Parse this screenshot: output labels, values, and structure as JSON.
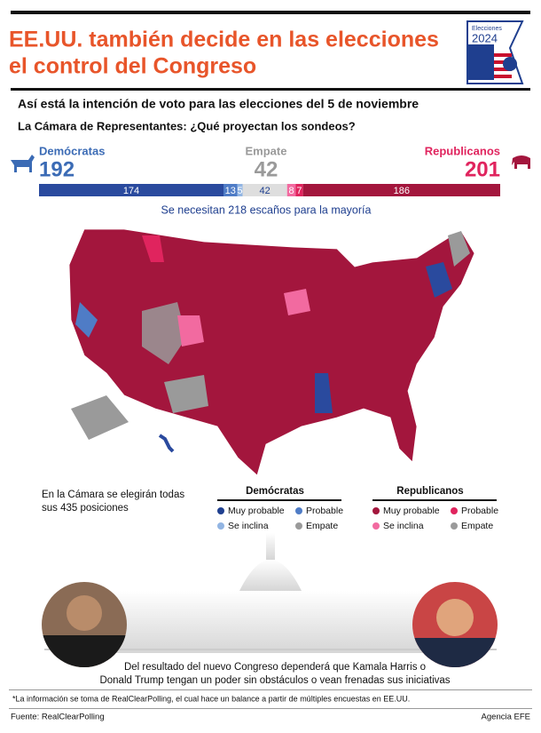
{
  "header": {
    "title_lines": [
      "EE.UU. también decide en las elecciones",
      "el control del Congreso"
    ],
    "badge": {
      "label": "Elecciones",
      "year": "2024"
    }
  },
  "subtitle": "Así está la intención de voto para las elecciones del 5 de noviembre",
  "question": "La Cámara de Representantes: ¿Qué proyectan los sondeos?",
  "parties": [
    {
      "name": "Demócratas",
      "seats": "192",
      "color": "#3b6bb5"
    },
    {
      "name": "Empate",
      "seats": "42",
      "color": "#9a9a9a"
    },
    {
      "name": "Republicanos",
      "seats": "201",
      "color": "#e0245e"
    }
  ],
  "seat_bar": {
    "segments": [
      {
        "value": 174,
        "color": "#2a4a9e"
      },
      {
        "value": 13,
        "color": "#4f7cc6"
      },
      {
        "value": 5,
        "color": "#92b5e3"
      },
      {
        "value": 42,
        "color": "#dedede"
      },
      {
        "value": 8,
        "color": "#f26aa0"
      },
      {
        "value": 7,
        "color": "#e0245e"
      },
      {
        "value": 186,
        "color": "#a3163d"
      }
    ],
    "majority_note": "Se necesitan 218 escaños para la mayoría"
  },
  "note_lines": [
    "En la Cámara se elegirán todas",
    "sus 435 posiciones"
  ],
  "legend": [
    {
      "title": "Demócratas",
      "items": [
        {
          "label": "Muy probable",
          "color": "#1f3f8f"
        },
        {
          "label": "Probable",
          "color": "#4f7cc6"
        },
        {
          "label": "Se inclina",
          "color": "#92b5e3"
        },
        {
          "label": "Empate",
          "color": "#9a9a9a"
        }
      ]
    },
    {
      "title": "Republicanos",
      "items": [
        {
          "label": "Muy probable",
          "color": "#a3163d"
        },
        {
          "label": "Probable",
          "color": "#e0245e"
        },
        {
          "label": "Se inclina",
          "color": "#f26aa0"
        },
        {
          "label": "Empate",
          "color": "#9a9a9a"
        }
      ]
    }
  ],
  "caption_lines": [
    "Del resultado del nuevo Congreso dependerá que Kamala Harris o",
    "Donald Trump tengan un poder sin obstáculos o vean frenadas sus iniciativas"
  ],
  "footnote": "*La información se toma de RealClearPolling, el cual hace un balance a partir de múltiples encuestas en EE.UU.",
  "footer": {
    "source": "Fuente: RealClearPolling",
    "credit": "Agencia EFE"
  }
}
